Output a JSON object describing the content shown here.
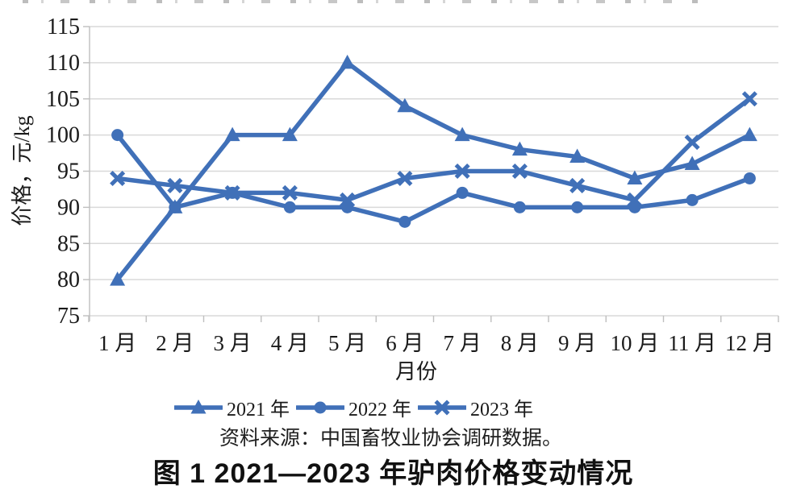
{
  "page": {
    "source_note": "资料来源：中国畜牧业协会调研数据。",
    "caption": "图 1  2021—2023 年驴肉价格变动情况"
  },
  "chart_data": {
    "type": "line",
    "title": "",
    "xlabel": "月份",
    "ylabel": "价格，元/kg",
    "ylim": [
      75,
      115
    ],
    "yticks": [
      75,
      80,
      85,
      90,
      95,
      100,
      105,
      110,
      115
    ],
    "grid": "horizontal",
    "legend_position": "bottom",
    "categories": [
      "1 月",
      "2 月",
      "3 月",
      "4 月",
      "5 月",
      "6 月",
      "7 月",
      "8 月",
      "9 月",
      "10 月",
      "11 月",
      "12 月"
    ],
    "series": [
      {
        "name": "2021 年",
        "marker": "triangle",
        "values": [
          80,
          90,
          100,
          100,
          110,
          104,
          100,
          98,
          97,
          94,
          96,
          100
        ]
      },
      {
        "name": "2022 年",
        "marker": "circle",
        "values": [
          100,
          90,
          92,
          90,
          90,
          88,
          92,
          90,
          90,
          90,
          91,
          94
        ]
      },
      {
        "name": "2023 年",
        "marker": "x",
        "values": [
          94,
          93,
          92,
          92,
          91,
          94,
          95,
          95,
          93,
          91,
          99,
          105
        ]
      }
    ],
    "colors": {
      "line": "#4070B8",
      "grid": "#D9D9D9",
      "axis": "#BFBFBF",
      "text": "#1A1A1A"
    }
  }
}
